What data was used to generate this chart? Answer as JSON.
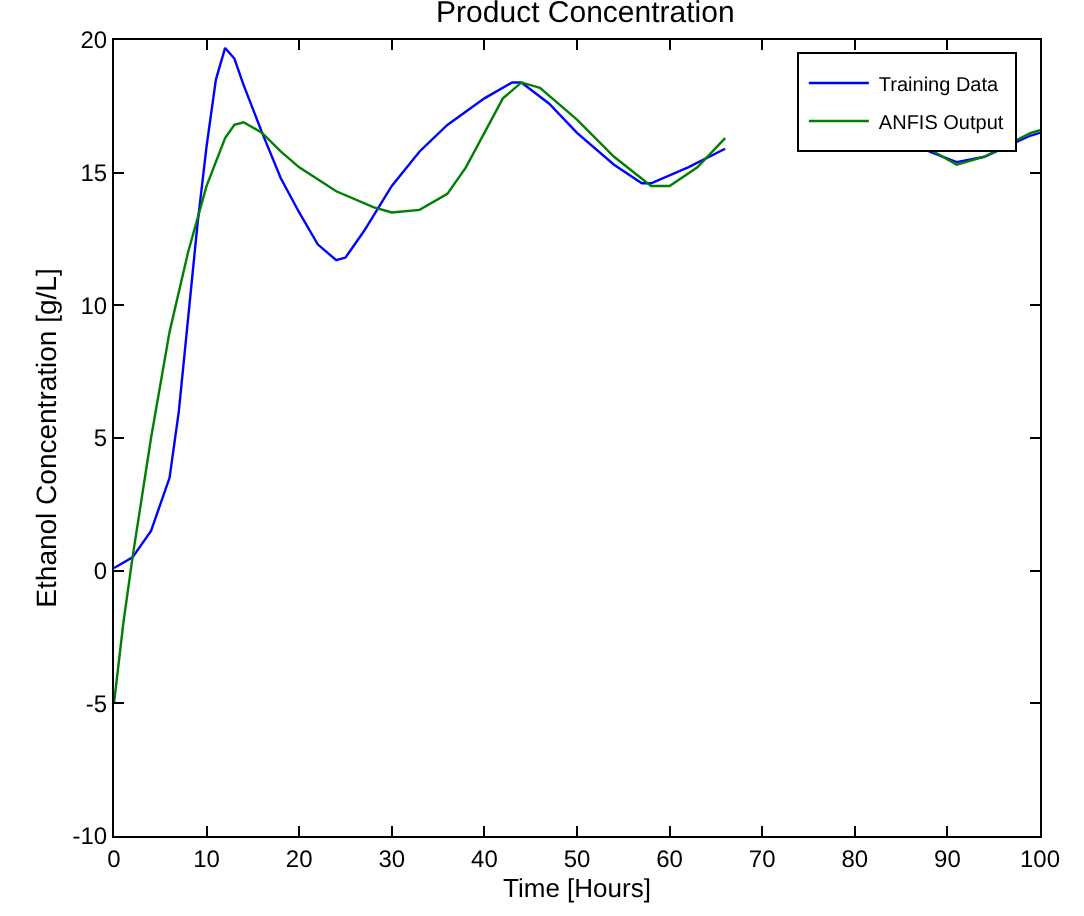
{
  "chart_data": {
    "type": "line",
    "title": "Product Concentration",
    "xlabel": "Time [Hours]",
    "ylabel": "Ethanol Concentration [g/L]",
    "xlim": [
      0,
      100
    ],
    "xticks": [
      0,
      10,
      20,
      30,
      40,
      50,
      60,
      70,
      80,
      90,
      100
    ],
    "ylim": [
      -10,
      20
    ],
    "yticks": [
      -10,
      -5,
      0,
      5,
      10,
      15,
      20
    ],
    "grid": false,
    "legend": "top right",
    "marker": "none",
    "line_style": "solid",
    "series": [
      {
        "name": "Training Data",
        "color": "#0000ff",
        "x": [
          0,
          2,
          4,
          6,
          7,
          8,
          9,
          10,
          11,
          12,
          13,
          14,
          16,
          18,
          20,
          22,
          24,
          25,
          27,
          30,
          33,
          36,
          40,
          43,
          44,
          47,
          50,
          54,
          57,
          58,
          62,
          66,
          70,
          75,
          80,
          85,
          88,
          91,
          94,
          99,
          100
        ],
        "values": [
          0.1,
          0.5,
          1.5,
          3.5,
          6,
          9.5,
          13,
          16,
          18.5,
          19.7,
          19.3,
          18.3,
          16.5,
          14.8,
          13.5,
          12.3,
          11.7,
          11.8,
          12.8,
          14.5,
          15.8,
          16.8,
          17.8,
          18.4,
          18.4,
          17.6,
          16.5,
          15.3,
          14.6,
          14.6,
          15.2,
          15.9,
          null,
          null,
          null,
          null,
          15.8,
          15.4,
          15.6,
          16.4,
          16.5
        ]
      },
      {
        "name": "ANFIS Output",
        "color": "#008000",
        "x": [
          0,
          1,
          2,
          4,
          6,
          8,
          10,
          12,
          13,
          14,
          16,
          18,
          20,
          24,
          28,
          30,
          33,
          36,
          38,
          40,
          42,
          44,
          46,
          50,
          54,
          58,
          60,
          63,
          66,
          70,
          75,
          80,
          85,
          88,
          91,
          94,
          99,
          100
        ],
        "values": [
          -5,
          -2,
          0.5,
          5,
          9,
          12,
          14.5,
          16.3,
          16.8,
          16.9,
          16.5,
          15.8,
          15.2,
          14.3,
          13.7,
          13.5,
          13.6,
          14.2,
          15.2,
          16.5,
          17.8,
          18.4,
          18.2,
          17,
          15.6,
          14.5,
          14.5,
          15.2,
          16.3,
          null,
          null,
          null,
          null,
          15.9,
          15.3,
          15.6,
          16.5,
          16.6
        ]
      }
    ]
  }
}
